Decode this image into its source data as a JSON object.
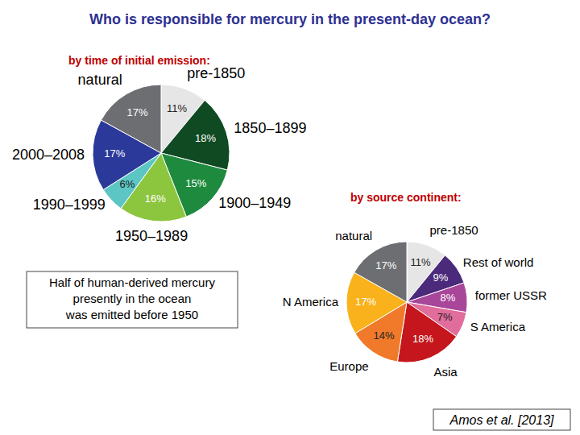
{
  "title": "Who is responsible for mercury in the present-day ocean?",
  "note": [
    "Half of human-derived mercury",
    "presently in the ocean",
    "was emitted before 1950"
  ],
  "source": "Amos et al. [2013]",
  "chart_data": [
    {
      "type": "pie",
      "title": "by time of initial emission:",
      "categories": [
        "pre-1850",
        "1850–1899",
        "1900–1949",
        "1950–1989",
        "1990–1999",
        "2000–2008",
        "natural"
      ],
      "values": [
        11,
        18,
        15,
        16,
        6,
        17,
        17
      ],
      "value_labels": [
        "11%",
        "18%",
        "15%",
        "16%",
        "6%",
        "17%",
        "17%"
      ],
      "colors": [
        "#e6e6e6",
        "#0f4a22",
        "#1e8a3e",
        "#8cc63f",
        "#5cc6c4",
        "#2b3a9a",
        "#6d6e71"
      ],
      "data_labels": true
    },
    {
      "type": "pie",
      "title": "by source continent:",
      "categories": [
        "pre-1850",
        "Rest of world",
        "former USSR",
        "S America",
        "Asia",
        "Europe",
        "N America",
        "natural"
      ],
      "values": [
        11,
        9,
        8,
        7,
        18,
        14,
        17,
        17
      ],
      "value_labels": [
        "11%",
        "9%",
        "8%",
        "7%",
        "18%",
        "14%",
        "17%",
        "17%"
      ],
      "colors": [
        "#e6e6e6",
        "#4b2a7b",
        "#a8479a",
        "#e06d9c",
        "#c4161c",
        "#f07a2a",
        "#f9b21b",
        "#6d6e71"
      ],
      "data_labels": true
    }
  ]
}
